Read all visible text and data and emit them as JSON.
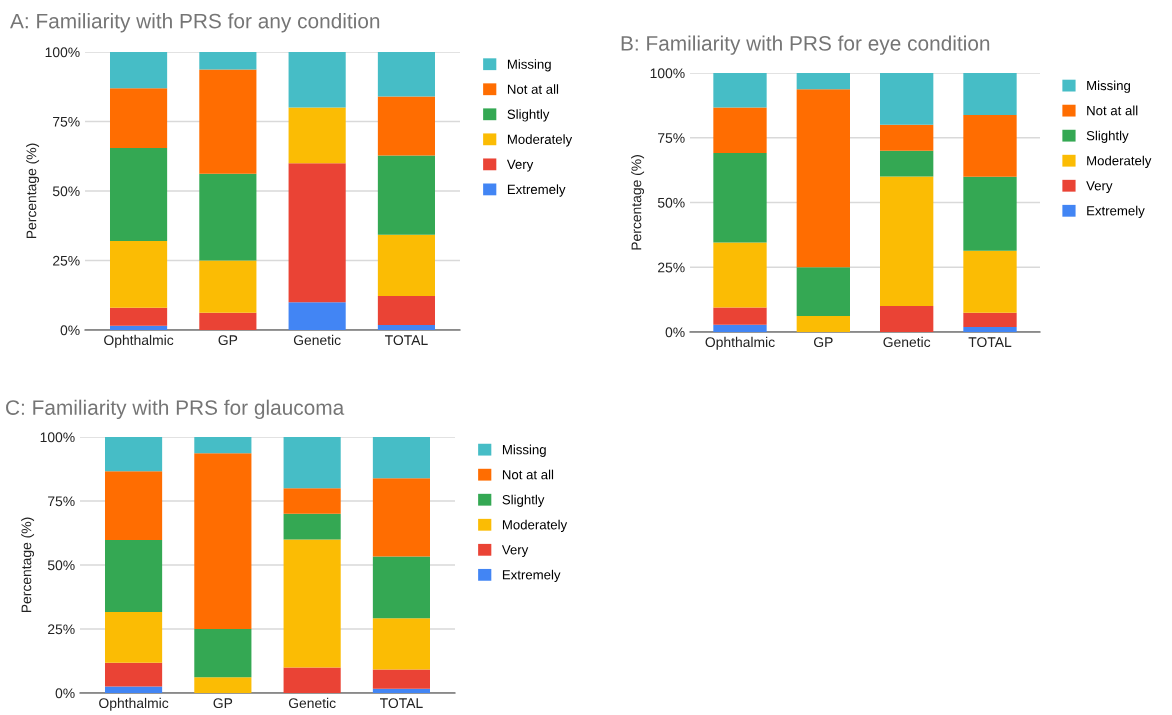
{
  "chart_data": [
    {
      "type": "bar",
      "title": "A: Familiarity with PRS for any condition",
      "ylabel": "Percentage (%)",
      "stacked": true,
      "categories": [
        "Ophthalmic",
        "GP",
        "Genetic",
        "TOTAL"
      ],
      "series": [
        {
          "name": "Extremely",
          "color": "#4285f4",
          "values": [
            1.5,
            0,
            10,
            1.8
          ]
        },
        {
          "name": "Very",
          "color": "#ea4335",
          "values": [
            6.5,
            6.2,
            50,
            10.4
          ]
        },
        {
          "name": "Moderately",
          "color": "#fbbc04",
          "values": [
            24,
            18.8,
            20,
            22.1
          ]
        },
        {
          "name": "Slightly",
          "color": "#34a853",
          "values": [
            33.5,
            31.2,
            0,
            28.5
          ]
        },
        {
          "name": "Not at all",
          "color": "#ff6d01",
          "values": [
            21.5,
            37.5,
            0,
            21.2
          ]
        },
        {
          "name": "Missing",
          "color": "#46bdc6",
          "values": [
            13,
            6.3,
            20,
            16
          ]
        }
      ],
      "ylim": [
        0,
        100
      ],
      "yticks": [
        {
          "value": 0,
          "label": "0%"
        },
        {
          "value": 25,
          "label": "25%"
        },
        {
          "value": 50,
          "label": "50%"
        },
        {
          "value": 75,
          "label": "75%"
        },
        {
          "value": 100,
          "label": "100%"
        }
      ],
      "grid": "y",
      "legend": "right"
    },
    {
      "type": "bar",
      "title": "B: Familiarity with PRS for eye condition",
      "ylabel": "Percentage (%)",
      "stacked": true,
      "categories": [
        "Ophthalmic",
        "GP",
        "Genetic",
        "TOTAL"
      ],
      "series": [
        {
          "name": "Extremely",
          "color": "#4285f4",
          "values": [
            2.8,
            0,
            0,
            1.9
          ]
        },
        {
          "name": "Very",
          "color": "#ea4335",
          "values": [
            6.7,
            0,
            10,
            5.5
          ]
        },
        {
          "name": "Moderately",
          "color": "#fbbc04",
          "values": [
            25.1,
            6.2,
            50,
            24
          ]
        },
        {
          "name": "Slightly",
          "color": "#34a853",
          "values": [
            34.5,
            18.8,
            10,
            28.5
          ]
        },
        {
          "name": "Not at all",
          "color": "#ff6d01",
          "values": [
            17.6,
            68.7,
            10,
            23.9
          ]
        },
        {
          "name": "Missing",
          "color": "#46bdc6",
          "values": [
            13.3,
            6.3,
            20,
            16.2
          ]
        }
      ],
      "ylim": [
        0,
        100
      ],
      "yticks": [
        {
          "value": 0,
          "label": "0%"
        },
        {
          "value": 25,
          "label": "25%"
        },
        {
          "value": 50,
          "label": "50%"
        },
        {
          "value": 75,
          "label": "75%"
        },
        {
          "value": 100,
          "label": "100%"
        }
      ],
      "grid": "y",
      "legend": "right"
    },
    {
      "type": "bar",
      "title": "C: Familiarity with PRS for glaucoma",
      "ylabel": "Percentage (%)",
      "stacked": true,
      "categories": [
        "Ophthalmic",
        "GP",
        "Genetic",
        "TOTAL"
      ],
      "series": [
        {
          "name": "Extremely",
          "color": "#4285f4",
          "values": [
            2.5,
            0,
            0,
            1.7
          ]
        },
        {
          "name": "Very",
          "color": "#ea4335",
          "values": [
            9.3,
            0,
            10,
            7.5
          ]
        },
        {
          "name": "Moderately",
          "color": "#fbbc04",
          "values": [
            19.8,
            6.2,
            50,
            20
          ]
        },
        {
          "name": "Slightly",
          "color": "#34a853",
          "values": [
            28.2,
            18.8,
            10,
            24.1
          ]
        },
        {
          "name": "Not at all",
          "color": "#ff6d01",
          "values": [
            26.8,
            68.7,
            10,
            30.6
          ]
        },
        {
          "name": "Missing",
          "color": "#46bdc6",
          "values": [
            13.4,
            6.3,
            20,
            16.1
          ]
        }
      ],
      "ylim": [
        0,
        100
      ],
      "yticks": [
        {
          "value": 0,
          "label": "0%"
        },
        {
          "value": 25,
          "label": "25%"
        },
        {
          "value": 50,
          "label": "50%"
        },
        {
          "value": 75,
          "label": "75%"
        },
        {
          "value": 100,
          "label": "100%"
        }
      ],
      "grid": "y",
      "legend": "right"
    }
  ]
}
